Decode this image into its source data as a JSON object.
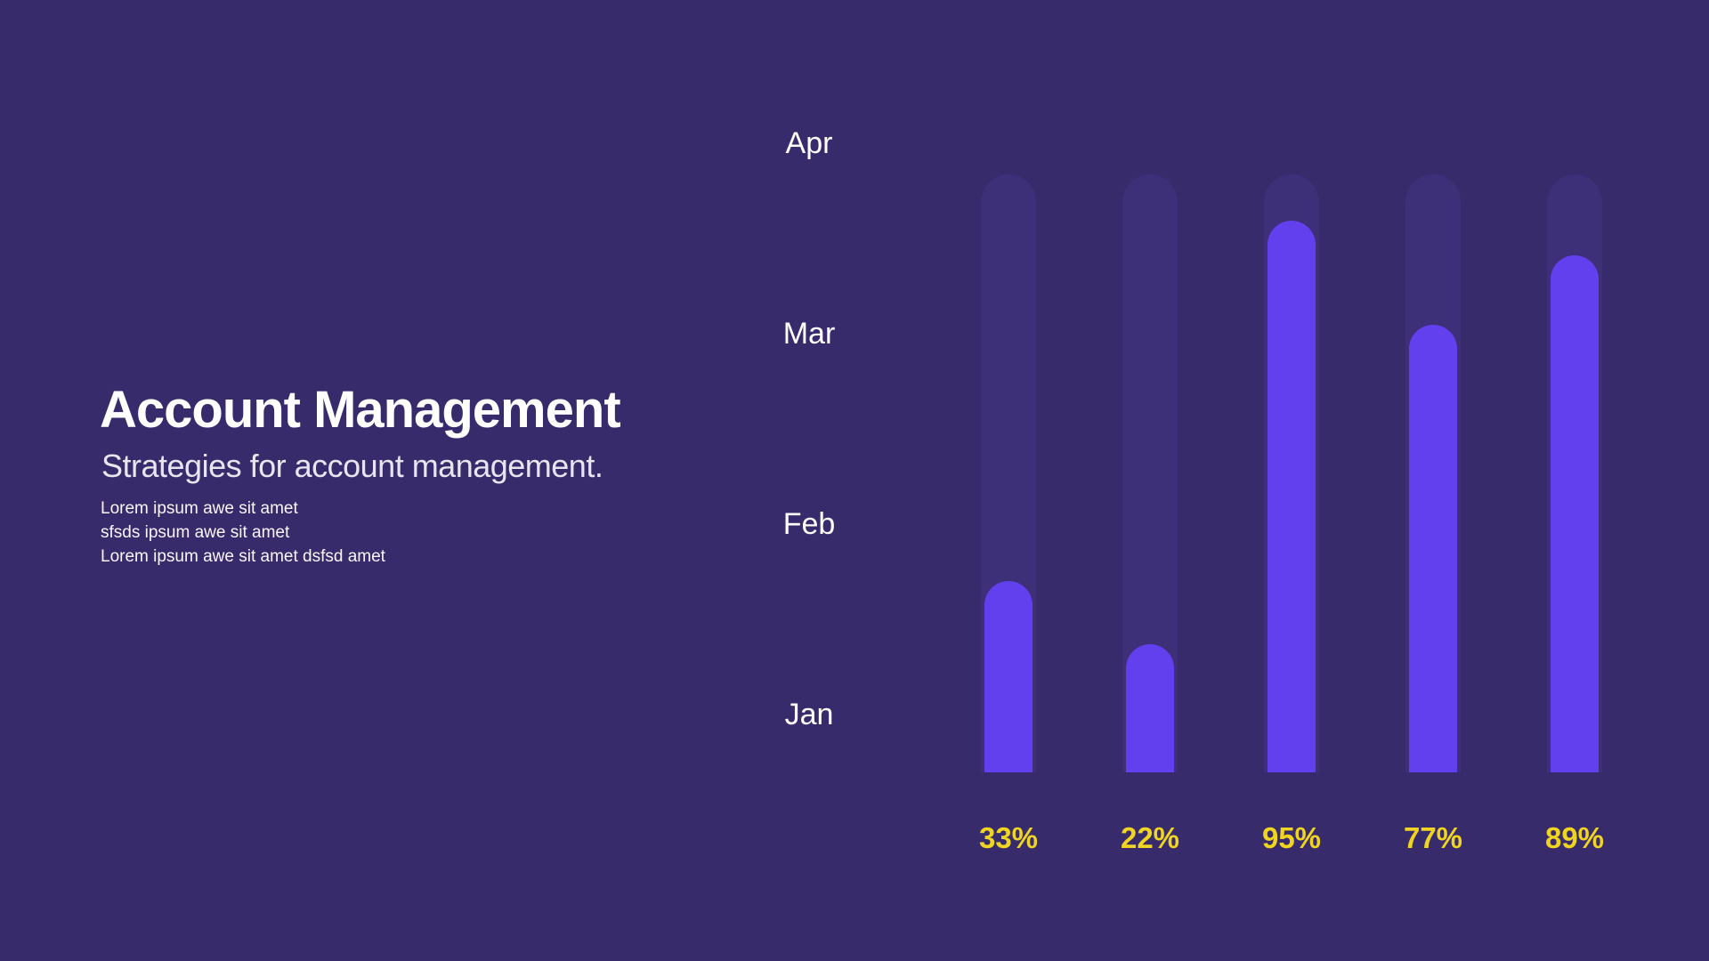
{
  "slide": {
    "title": "Account Management",
    "subtitle": "Strategies for account management.",
    "description_lines": [
      "Lorem ipsum awe sit amet",
      "sfsds ipsum awe sit amet",
      "Lorem ipsum awe sit amet dsfsd amet"
    ]
  },
  "colors": {
    "background": "#382B6C",
    "bar_track": "#3D2F78",
    "bar_fill": "#6240EE",
    "value_label": "#EFD51F",
    "axis_text": "#FFFFFF"
  },
  "chart_data": {
    "type": "bar",
    "orientation": "vertical",
    "values": [
      33,
      22,
      95,
      77,
      89
    ],
    "value_labels": [
      "33%",
      "22%",
      "95%",
      "77%",
      "89%"
    ],
    "y_axis_ticks": [
      "Apr",
      "Mar",
      "Feb",
      "Jan"
    ],
    "value_range": [
      0,
      100
    ],
    "grid": false,
    "legend": false,
    "title": "",
    "xlabel": "",
    "ylabel": ""
  }
}
